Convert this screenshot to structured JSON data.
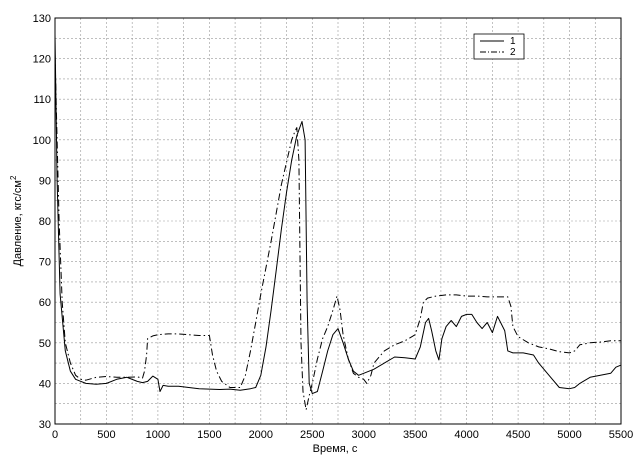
{
  "chart_data": {
    "type": "line",
    "xlabel": "Время, с",
    "ylabel": "Давление, кгс/см",
    "ylabel_sup": "2",
    "xlim": [
      0,
      5500
    ],
    "ylim": [
      30,
      130
    ],
    "x_ticks": [
      0,
      500,
      1000,
      1500,
      2000,
      2500,
      3000,
      3500,
      4000,
      4500,
      5000,
      5500
    ],
    "y_ticks": [
      30,
      40,
      50,
      60,
      70,
      80,
      90,
      100,
      110,
      120,
      130
    ],
    "grid": true,
    "legend_position": "top-right",
    "series": [
      {
        "name": "1",
        "style": "solid",
        "color": "#000000",
        "points": [
          [
            0,
            126
          ],
          [
            20,
            90
          ],
          [
            50,
            62
          ],
          [
            100,
            48
          ],
          [
            150,
            43
          ],
          [
            200,
            41
          ],
          [
            300,
            40
          ],
          [
            400,
            39.8
          ],
          [
            500,
            40
          ],
          [
            600,
            41
          ],
          [
            700,
            41.5
          ],
          [
            800,
            40.5
          ],
          [
            850,
            40.2
          ],
          [
            900,
            40.5
          ],
          [
            950,
            41.8
          ],
          [
            1000,
            41
          ],
          [
            1020,
            38
          ],
          [
            1050,
            39.5
          ],
          [
            1100,
            39.3
          ],
          [
            1200,
            39.3
          ],
          [
            1300,
            39
          ],
          [
            1400,
            38.7
          ],
          [
            1500,
            38.6
          ],
          [
            1600,
            38.5
          ],
          [
            1700,
            38.6
          ],
          [
            1800,
            38.3
          ],
          [
            1900,
            38.7
          ],
          [
            1950,
            39
          ],
          [
            2000,
            42
          ],
          [
            2050,
            49
          ],
          [
            2100,
            58
          ],
          [
            2150,
            68
          ],
          [
            2200,
            78
          ],
          [
            2250,
            87
          ],
          [
            2300,
            95
          ],
          [
            2350,
            101
          ],
          [
            2400,
            104.5
          ],
          [
            2430,
            100
          ],
          [
            2450,
            60
          ],
          [
            2470,
            40
          ],
          [
            2500,
            37.5
          ],
          [
            2550,
            38
          ],
          [
            2600,
            43
          ],
          [
            2650,
            48
          ],
          [
            2700,
            52
          ],
          [
            2750,
            53.5
          ],
          [
            2800,
            50
          ],
          [
            2850,
            46
          ],
          [
            2900,
            43
          ],
          [
            2950,
            42
          ],
          [
            3000,
            42.5
          ],
          [
            3100,
            43.5
          ],
          [
            3200,
            45
          ],
          [
            3300,
            46.5
          ],
          [
            3400,
            46.3
          ],
          [
            3500,
            46
          ],
          [
            3550,
            49
          ],
          [
            3600,
            55
          ],
          [
            3630,
            56
          ],
          [
            3660,
            53
          ],
          [
            3700,
            48
          ],
          [
            3730,
            45.8
          ],
          [
            3760,
            51
          ],
          [
            3800,
            54
          ],
          [
            3850,
            55.5
          ],
          [
            3900,
            54
          ],
          [
            3950,
            56.5
          ],
          [
            4000,
            57
          ],
          [
            4050,
            57
          ],
          [
            4100,
            55
          ],
          [
            4150,
            53.5
          ],
          [
            4200,
            55
          ],
          [
            4250,
            52.5
          ],
          [
            4300,
            56.5
          ],
          [
            4330,
            55
          ],
          [
            4370,
            53
          ],
          [
            4400,
            48
          ],
          [
            4450,
            47.5
          ],
          [
            4550,
            47.5
          ],
          [
            4650,
            47
          ],
          [
            4700,
            45
          ],
          [
            4800,
            42
          ],
          [
            4900,
            39
          ],
          [
            5000,
            38.7
          ],
          [
            5050,
            39
          ],
          [
            5100,
            40
          ],
          [
            5200,
            41.5
          ],
          [
            5300,
            42
          ],
          [
            5400,
            42.5
          ],
          [
            5450,
            44
          ],
          [
            5500,
            44.5
          ]
        ]
      },
      {
        "name": "2",
        "style": "dashdot",
        "color": "#000000",
        "points": [
          [
            0,
            121
          ],
          [
            20,
            100
          ],
          [
            40,
            80
          ],
          [
            70,
            60
          ],
          [
            100,
            50
          ],
          [
            150,
            45
          ],
          [
            200,
            42
          ],
          [
            250,
            41
          ],
          [
            300,
            40.8
          ],
          [
            400,
            41.5
          ],
          [
            500,
            41.7
          ],
          [
            600,
            41.5
          ],
          [
            700,
            41.5
          ],
          [
            800,
            41.6
          ],
          [
            850,
            41.3
          ],
          [
            870,
            43
          ],
          [
            890,
            47
          ],
          [
            900,
            51
          ],
          [
            950,
            51.7
          ],
          [
            1000,
            52
          ],
          [
            1100,
            52.2
          ],
          [
            1200,
            52.2
          ],
          [
            1300,
            52
          ],
          [
            1400,
            51.8
          ],
          [
            1500,
            51.8
          ],
          [
            1530,
            47
          ],
          [
            1570,
            43
          ],
          [
            1620,
            40.5
          ],
          [
            1700,
            39
          ],
          [
            1800,
            39
          ],
          [
            1850,
            42
          ],
          [
            1900,
            48
          ],
          [
            1950,
            55
          ],
          [
            2000,
            62
          ],
          [
            2100,
            75
          ],
          [
            2200,
            89
          ],
          [
            2300,
            100
          ],
          [
            2330,
            102
          ],
          [
            2350,
            103
          ],
          [
            2370,
            95
          ],
          [
            2390,
            50
          ],
          [
            2410,
            38
          ],
          [
            2440,
            33.5
          ],
          [
            2470,
            37
          ],
          [
            2500,
            40
          ],
          [
            2550,
            46
          ],
          [
            2600,
            51
          ],
          [
            2650,
            54
          ],
          [
            2700,
            58
          ],
          [
            2740,
            61.5
          ],
          [
            2770,
            58
          ],
          [
            2800,
            52
          ],
          [
            2850,
            46
          ],
          [
            2900,
            42.5
          ],
          [
            2950,
            41.5
          ],
          [
            3000,
            41
          ],
          [
            3030,
            40
          ],
          [
            3070,
            42
          ],
          [
            3100,
            45
          ],
          [
            3200,
            48
          ],
          [
            3300,
            49.5
          ],
          [
            3400,
            50.5
          ],
          [
            3500,
            52
          ],
          [
            3550,
            56
          ],
          [
            3580,
            60
          ],
          [
            3620,
            61
          ],
          [
            3700,
            61.5
          ],
          [
            3800,
            61.8
          ],
          [
            3900,
            61.8
          ],
          [
            4000,
            61.5
          ],
          [
            4100,
            61.5
          ],
          [
            4200,
            61.3
          ],
          [
            4300,
            61.3
          ],
          [
            4400,
            61.3
          ],
          [
            4430,
            59
          ],
          [
            4450,
            54
          ],
          [
            4500,
            51.5
          ],
          [
            4600,
            50
          ],
          [
            4700,
            49
          ],
          [
            4800,
            48.5
          ],
          [
            4900,
            47.8
          ],
          [
            5000,
            47.5
          ],
          [
            5050,
            48
          ],
          [
            5100,
            49.5
          ],
          [
            5200,
            50
          ],
          [
            5300,
            50.2
          ],
          [
            5400,
            50.5
          ],
          [
            5500,
            50.5
          ]
        ]
      }
    ]
  }
}
